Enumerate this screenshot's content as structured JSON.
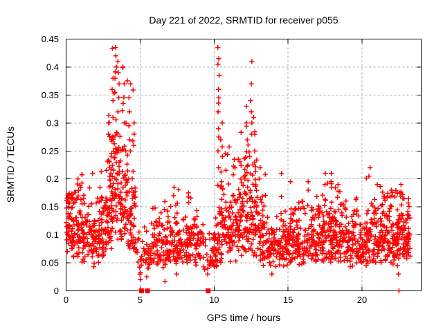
{
  "title": "Day 221 of 2022, SRMTID for receiver p055",
  "axes": {
    "x": {
      "label": "GPS time / hours",
      "ticks": [
        {
          "v": 0,
          "label": "0"
        },
        {
          "v": 5,
          "label": "5"
        },
        {
          "v": 10,
          "label": "10"
        },
        {
          "v": 15,
          "label": "15"
        },
        {
          "v": 20,
          "label": "20"
        }
      ]
    },
    "y": {
      "label": "SRMTID / TECUs",
      "ticks": [
        {
          "v": 0,
          "label": "0"
        },
        {
          "v": 0.05,
          "label": "0.05"
        },
        {
          "v": 0.1,
          "label": "0.1"
        },
        {
          "v": 0.15,
          "label": "0.15"
        },
        {
          "v": 0.2,
          "label": "0.2"
        },
        {
          "v": 0.25,
          "label": "0.25"
        },
        {
          "v": 0.3,
          "label": "0.3"
        },
        {
          "v": 0.35,
          "label": "0.35"
        },
        {
          "v": 0.4,
          "label": "0.4"
        },
        {
          "v": 0.45,
          "label": "0.45"
        }
      ]
    }
  },
  "style": {
    "marker_color": "#ff0000",
    "grid_color": "#a8a8a8",
    "axis_color": "#000000",
    "background": "#ffffff",
    "text_color": "#000000"
  },
  "chart_data": {
    "type": "scatter",
    "title": "Day 221 of 2022, SRMTID for receiver p055",
    "xlabel": "GPS time / hours",
    "ylabel": "SRMTID / TECUs",
    "xlim": [
      0,
      24
    ],
    "ylim": [
      0,
      0.45
    ],
    "grid": true,
    "legend": "none",
    "marker": "plus",
    "series_color": "#ff0000",
    "seed": 7,
    "summary": {
      "description": "Dense ionospheric SRMTID scatter vs GPS time; baseline band 0.05-0.15 TECUs all day, major activity peaks near hours 3.4 (max 0.435), 10.3 (max 0.435) and 12.5 (max 0.41); dropouts to 0 near hours 5.1, 5.5, 9.6 and 22.5; data ends near hour 23.2",
      "y_max_observed": 0.435,
      "y_max_at_hours": [
        3.35,
        10.3
      ],
      "data_end_hour": 23.2
    },
    "bands_format": "[x_start_hr, x_end_hr, n_points, y_min, y_median, y_max, spread(optional)]",
    "bands": [
      [
        0,
        0.5,
        60,
        0.07,
        0.115,
        0.175
      ],
      [
        0.5,
        1.0,
        48,
        0.06,
        0.11,
        0.2
      ],
      [
        1.0,
        1.6,
        50,
        0.05,
        0.1,
        0.21
      ],
      [
        1.6,
        2.2,
        50,
        0.035,
        0.1,
        0.21
      ],
      [
        2.2,
        2.7,
        52,
        0.06,
        0.115,
        0.22
      ],
      [
        2.7,
        3.1,
        55,
        0.07,
        0.16,
        0.33,
        0.38
      ],
      [
        3.1,
        3.7,
        70,
        0.08,
        0.2,
        0.435,
        0.4
      ],
      [
        3.7,
        4.2,
        60,
        0.08,
        0.17,
        0.4,
        0.4
      ],
      [
        4.2,
        4.7,
        48,
        0.07,
        0.13,
        0.37,
        0.38
      ],
      [
        4.7,
        5.25,
        16,
        0.02,
        0.065,
        0.12
      ],
      [
        5.25,
        5.75,
        24,
        0.02,
        0.07,
        0.13
      ],
      [
        5.75,
        6.5,
        48,
        0.045,
        0.085,
        0.15
      ],
      [
        6.5,
        7.2,
        50,
        0.04,
        0.085,
        0.16
      ],
      [
        7.2,
        7.8,
        50,
        0.03,
        0.09,
        0.185
      ],
      [
        7.8,
        8.5,
        50,
        0.05,
        0.09,
        0.17
      ],
      [
        8.5,
        9.3,
        46,
        0.04,
        0.085,
        0.155
      ],
      [
        9.3,
        9.95,
        24,
        0.02,
        0.06,
        0.12
      ],
      [
        9.95,
        10.25,
        26,
        0.03,
        0.08,
        0.18
      ],
      [
        10.25,
        10.6,
        40,
        0.05,
        0.13,
        0.435,
        0.45
      ],
      [
        10.6,
        11.2,
        55,
        0.05,
        0.12,
        0.26
      ],
      [
        11.2,
        11.8,
        55,
        0.05,
        0.12,
        0.24
      ],
      [
        11.8,
        12.35,
        60,
        0.06,
        0.14,
        0.33,
        0.38
      ],
      [
        12.35,
        12.95,
        60,
        0.06,
        0.15,
        0.41,
        0.4
      ],
      [
        12.95,
        13.5,
        45,
        0.04,
        0.1,
        0.22
      ],
      [
        13.5,
        14.2,
        45,
        0.03,
        0.08,
        0.145
      ],
      [
        14.2,
        15.0,
        55,
        0.04,
        0.085,
        0.175
      ],
      [
        15.0,
        15.6,
        50,
        0.05,
        0.09,
        0.2
      ],
      [
        15.6,
        16.3,
        55,
        0.04,
        0.085,
        0.165
      ],
      [
        16.3,
        17.0,
        52,
        0.05,
        0.09,
        0.2
      ],
      [
        17.0,
        17.6,
        55,
        0.05,
        0.095,
        0.19
      ],
      [
        17.6,
        18.2,
        55,
        0.05,
        0.1,
        0.21
      ],
      [
        18.2,
        18.8,
        55,
        0.05,
        0.1,
        0.2
      ],
      [
        18.8,
        19.5,
        55,
        0.04,
        0.09,
        0.185
      ],
      [
        19.5,
        20.2,
        55,
        0.05,
        0.09,
        0.17
      ],
      [
        20.2,
        20.8,
        52,
        0.04,
        0.09,
        0.22
      ],
      [
        20.8,
        21.4,
        55,
        0.05,
        0.095,
        0.19
      ],
      [
        21.4,
        22.0,
        55,
        0.05,
        0.1,
        0.185
      ],
      [
        22.0,
        22.6,
        58,
        0.04,
        0.1,
        0.185
      ],
      [
        22.6,
        23.25,
        66,
        0.05,
        0.1,
        0.18
      ]
    ],
    "spikes": [
      {
        "x": 0.85,
        "ys": [
          0.2
        ]
      },
      {
        "x": 1.75,
        "ys": [
          0.21
        ]
      },
      {
        "x": 2.9,
        "ys": [
          0.3,
          0.28
        ]
      },
      {
        "x": 3.15,
        "ys": [
          0.38,
          0.36,
          0.34,
          0.31
        ]
      },
      {
        "x": 3.35,
        "ys": [
          0.435,
          0.42,
          0.4,
          0.38,
          0.355
        ]
      },
      {
        "x": 3.55,
        "ys": [
          0.41,
          0.39,
          0.37,
          0.345,
          0.32
        ]
      },
      {
        "x": 3.9,
        "ys": [
          0.4,
          0.37,
          0.335,
          0.3
        ]
      },
      {
        "x": 4.3,
        "ys": [
          0.37,
          0.345,
          0.32,
          0.295,
          0.27,
          0.25
        ]
      },
      {
        "x": 4.55,
        "ys": [
          0.3,
          0.28,
          0.26
        ]
      },
      {
        "x": 5.0,
        "ys": [
          0.03,
          0.02
        ]
      },
      {
        "x": 5.5,
        "ys": [
          0.025
        ]
      },
      {
        "x": 6.63,
        "ys": [
          0.017
        ]
      },
      {
        "x": 7.3,
        "ys": [
          0.185,
          0.17
        ]
      },
      {
        "x": 7.45,
        "ys": [
          0.03
        ]
      },
      {
        "x": 8.3,
        "ys": [
          0.175
        ]
      },
      {
        "x": 9.6,
        "ys": [
          0.03
        ]
      },
      {
        "x": 10.3,
        "ys": [
          0.435,
          0.415,
          0.405,
          0.385,
          0.36,
          0.345,
          0.32,
          0.29,
          0.275,
          0.25,
          0.22
        ]
      },
      {
        "x": 10.5,
        "ys": [
          0.3,
          0.27,
          0.24
        ]
      },
      {
        "x": 11.4,
        "ys": [
          0.235,
          0.22
        ]
      },
      {
        "x": 12.2,
        "ys": [
          0.33,
          0.3,
          0.27
        ]
      },
      {
        "x": 12.5,
        "ys": [
          0.41,
          0.37,
          0.34,
          0.3,
          0.28
        ]
      },
      {
        "x": 12.7,
        "ys": [
          0.31,
          0.28,
          0.25,
          0.23
        ]
      },
      {
        "x": 13.1,
        "ys": [
          0.22,
          0.2
        ]
      },
      {
        "x": 13.9,
        "ys": [
          0.03
        ]
      },
      {
        "x": 14.5,
        "ys": [
          0.21
        ]
      },
      {
        "x": 15.15,
        "ys": [
          0.195
        ]
      },
      {
        "x": 16.4,
        "ys": [
          0.195,
          0.18
        ]
      },
      {
        "x": 17.5,
        "ys": [
          0.21,
          0.19
        ]
      },
      {
        "x": 17.95,
        "ys": [
          0.21,
          0.195,
          0.185
        ]
      },
      {
        "x": 20.5,
        "ys": [
          0.22,
          0.205
        ]
      },
      {
        "x": 21.0,
        "ys": [
          0.19
        ]
      },
      {
        "x": 22.0,
        "ys": [
          0.18,
          0.17
        ]
      },
      {
        "x": 22.45,
        "ys": [
          0.045,
          0.03
        ]
      },
      {
        "x": 22.6,
        "ys": [
          0.19,
          0.175
        ]
      }
    ],
    "zero_squares": [
      5.1,
      5.5,
      9.6
    ],
    "zero_plus": [
      22.5
    ]
  }
}
